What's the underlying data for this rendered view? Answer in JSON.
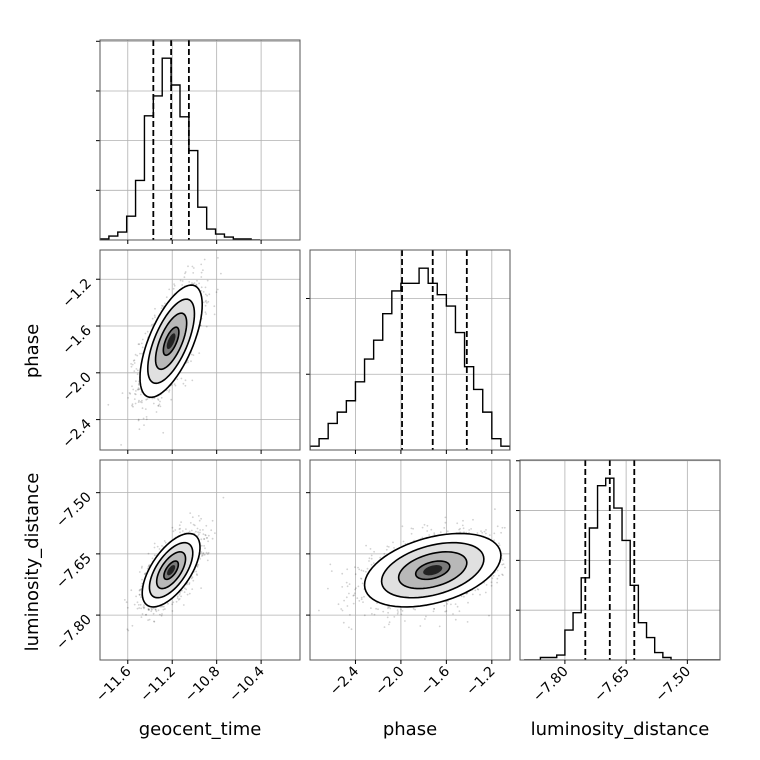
{
  "chart_data": {
    "type": "corner",
    "parameters": [
      "geocent_time",
      "phase",
      "luminosity_distance"
    ],
    "grid": true,
    "line_color": "#000000",
    "hist_fill_color": "#000000",
    "marginals": [
      {
        "parameter": "geocent_time",
        "bin_edges": [
          -11.85,
          -11.77,
          -11.69,
          -11.61,
          -11.53,
          -11.45,
          -11.37,
          -11.29,
          -11.21,
          -11.13,
          -11.05,
          -10.97,
          -10.89,
          -10.81,
          -10.73,
          -10.65,
          -10.57,
          -10.49,
          -10.41
        ],
        "counts": [
          1,
          4,
          8,
          24,
          60,
          125,
          145,
          183,
          156,
          124,
          90,
          33,
          11,
          6,
          3,
          1,
          1,
          0
        ],
        "quantiles": [
          -11.37,
          -11.21,
          -11.05
        ],
        "xlim": [
          -11.85,
          -10.05
        ],
        "xticks": [
          -11.6,
          -11.2,
          -10.8,
          -10.4
        ],
        "xtick_labels": [
          "−11.6",
          "−11.2",
          "−10.8",
          "−10.4"
        ]
      },
      {
        "parameter": "phase",
        "bin_edges": [
          -2.8,
          -2.72,
          -2.64,
          -2.56,
          -2.48,
          -2.4,
          -2.32,
          -2.24,
          -2.16,
          -2.08,
          -2.0,
          -1.92,
          -1.84,
          -1.76,
          -1.68,
          -1.6,
          -1.52,
          -1.44,
          -1.36,
          -1.28,
          -1.2,
          -1.12,
          -1.04
        ],
        "counts": [
          1,
          3,
          7,
          10,
          13,
          18,
          24,
          29,
          36,
          42,
          44,
          44,
          48,
          44,
          41,
          38,
          31,
          22,
          16,
          10,
          3,
          1
        ],
        "quantiles": [
          -1.99,
          -1.72,
          -1.42
        ],
        "xlim": [
          -2.8,
          -1.04
        ],
        "xticks": [
          -2.4,
          -2.0,
          -1.6,
          -1.2
        ],
        "xtick_labels": [
          "−2.4",
          "−2.0",
          "−1.6",
          "−1.2"
        ]
      },
      {
        "parameter": "luminosity_distance",
        "bin_edges": [
          -7.9,
          -7.88,
          -7.86,
          -7.84,
          -7.82,
          -7.8,
          -7.78,
          -7.76,
          -7.74,
          -7.72,
          -7.7,
          -7.68,
          -7.66,
          -7.64,
          -7.62,
          -7.6,
          -7.58,
          -7.56,
          -7.54,
          -7.52,
          -7.5,
          -7.48,
          -7.46,
          -7.44,
          -7.42
        ],
        "counts": [
          0,
          0,
          1,
          1,
          2,
          12,
          19,
          33,
          53,
          70,
          73,
          61,
          48,
          30,
          15,
          9,
          3,
          1,
          0,
          0,
          0,
          0,
          0,
          0
        ],
        "quantiles": [
          -7.75,
          -7.69,
          -7.63
        ],
        "xlim": [
          -7.91,
          -7.42
        ],
        "xticks": [
          -7.8,
          -7.65,
          -7.5
        ],
        "xtick_labels": [
          "−7.80",
          "−7.65",
          "−7.50"
        ]
      }
    ],
    "joint": [
      {
        "x": "geocent_time",
        "y": "phase",
        "center": [
          -11.21,
          -1.73
        ],
        "sigma": [
          0.14,
          0.24
        ],
        "corr": 0.65,
        "contour_levels": [
          0.5,
          1.0,
          1.5,
          2.0
        ],
        "ylim": [
          -2.66,
          -0.95
        ],
        "yticks": [
          -2.4,
          -2.0,
          -1.6,
          -1.2
        ],
        "ytick_labels": [
          "−2.4",
          "−2.0",
          "−1.6",
          "−1.2"
        ]
      },
      {
        "x": "geocent_time",
        "y": "luminosity_distance",
        "center": [
          -11.21,
          -7.69
        ],
        "sigma": [
          0.13,
          0.045
        ],
        "corr": 0.62,
        "contour_levels": [
          0.5,
          1.0,
          1.5,
          2.0
        ],
        "ylim": [
          -7.91,
          -7.42
        ],
        "yticks": [
          -7.8,
          -7.65,
          -7.5
        ],
        "ytick_labels": [
          "−7.80",
          "−7.65",
          "−7.50"
        ]
      },
      {
        "x": "phase",
        "y": "luminosity_distance",
        "center": [
          -1.72,
          -7.69
        ],
        "sigma": [
          0.3,
          0.045
        ],
        "corr": 0.4,
        "contour_levels": [
          0.5,
          1.0,
          1.5,
          2.0
        ],
        "ylim": [
          -7.91,
          -7.42
        ],
        "yticks": [
          -7.8,
          -7.65,
          -7.5
        ],
        "ytick_labels": [
          "−7.80",
          "−7.65",
          "−7.50"
        ]
      }
    ],
    "axis_labels": {
      "y_row1": "phase",
      "y_row2": "luminosity_distance",
      "x_col0": "geocent_time",
      "x_col1": "phase",
      "x_col2": "luminosity_distance"
    }
  }
}
